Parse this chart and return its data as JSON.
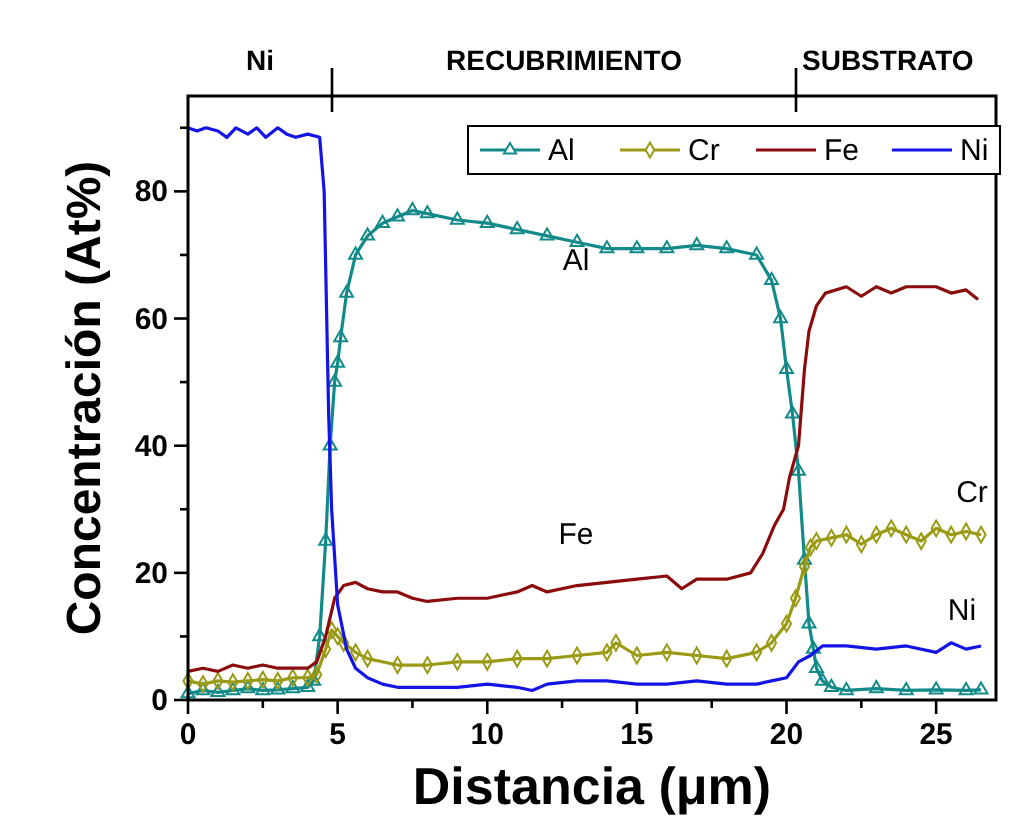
{
  "chart_data": {
    "type": "line",
    "xlabel": "Distancia (μm)",
    "ylabel": "Concentración (At%)",
    "xlim": [
      0,
      27
    ],
    "ylim": [
      0,
      95
    ],
    "xticks": [
      0,
      {
        "value": 2.5,
        "label": null
      },
      5,
      {
        "value": 7.5,
        "label": null
      },
      10,
      {
        "value": 12.5,
        "label": null
      },
      15,
      {
        "value": 17.5,
        "label": null
      },
      20,
      {
        "value": 22.5,
        "label": null
      },
      25
    ],
    "yticks": [
      0,
      {
        "value": 10,
        "label": null
      },
      20,
      {
        "value": 30,
        "label": null
      },
      40,
      {
        "value": 50,
        "label": null
      },
      60,
      {
        "value": 70,
        "label": null
      },
      80,
      {
        "value": 90,
        "label": null
      }
    ],
    "legend": "top right",
    "grid": false,
    "annotations": [
      "Ni",
      "RECUBRIMIENTO",
      "SUBSTRATO",
      "Al",
      "Fe",
      "Cr",
      "Ni"
    ],
    "series": [
      {
        "name": "Al",
        "color": "#138a8a",
        "marker": "triangle",
        "x": [
          0,
          0.5,
          1,
          1.5,
          2,
          2.5,
          3,
          3.5,
          4,
          4.2,
          4.4,
          4.6,
          4.75,
          4.9,
          5,
          5.1,
          5.3,
          5.6,
          6,
          6.5,
          7,
          7.5,
          8,
          9,
          10,
          11,
          12,
          13,
          14,
          15,
          16,
          17,
          18,
          19,
          19.5,
          19.8,
          20,
          20.2,
          20.4,
          20.6,
          20.75,
          20.9,
          21,
          21.2,
          21.5,
          22,
          23,
          24,
          25,
          26,
          26.5
        ],
        "values": [
          1,
          1.5,
          1.2,
          1.5,
          1.8,
          1.5,
          1.6,
          1.8,
          2,
          3,
          10,
          25,
          40,
          50,
          53,
          57,
          64,
          70,
          73,
          75,
          76,
          77,
          76.5,
          75.5,
          75,
          74,
          73,
          72,
          71,
          71,
          71,
          71.5,
          71,
          70,
          66,
          60,
          52,
          45,
          36,
          22,
          12,
          8,
          5,
          3,
          2,
          1.5,
          1.8,
          1.5,
          1.6,
          1.5,
          1.6
        ]
      },
      {
        "name": "Cr",
        "color": "#9a9a14",
        "marker": "diamond",
        "x": [
          0,
          0.5,
          1,
          1.5,
          2,
          2.5,
          3,
          3.5,
          4,
          4.3,
          4.6,
          4.8,
          5,
          5.2,
          5.6,
          6,
          7,
          8,
          9,
          10,
          11,
          12,
          13,
          14,
          14.3,
          15,
          16,
          17,
          18,
          19,
          19.5,
          20,
          20.3,
          20.6,
          20.8,
          21,
          21.5,
          22,
          22.5,
          23,
          23.5,
          24,
          24.5,
          25,
          25.5,
          26,
          26.5
        ],
        "values": [
          3,
          2.5,
          3,
          2.8,
          3,
          3.2,
          3,
          3.5,
          3.5,
          4,
          8,
          11,
          10,
          9,
          7.5,
          6.5,
          5.5,
          5.5,
          6,
          6,
          6.5,
          6.5,
          7,
          7.5,
          9,
          7,
          7.5,
          7,
          6.5,
          7.5,
          9,
          12,
          16,
          21,
          24,
          25,
          25.5,
          26,
          24.5,
          26,
          27,
          26,
          25,
          27,
          26,
          26.5,
          26
        ]
      },
      {
        "name": "Fe",
        "color": "#8b0c0c",
        "marker": "none",
        "x": [
          0,
          0.5,
          1,
          1.5,
          2,
          2.5,
          3,
          3.5,
          4,
          4.3,
          4.6,
          4.9,
          5.2,
          5.6,
          6,
          6.5,
          7,
          7.5,
          8,
          9,
          10,
          11,
          11.5,
          12,
          13,
          14,
          15,
          16,
          16.5,
          17,
          18,
          18.8,
          19.2,
          19.6,
          19.9,
          20.1,
          20.4,
          20.6,
          20.75,
          21,
          21.3,
          22,
          22.5,
          23,
          23.5,
          24,
          25,
          25.5,
          26,
          26.4
        ],
        "values": [
          4.5,
          5,
          4.5,
          5.5,
          5,
          5.5,
          5,
          5,
          5,
          6,
          10,
          16,
          18,
          18.5,
          17.5,
          17,
          17,
          16,
          15.5,
          16,
          16,
          17,
          18,
          17,
          18,
          18.5,
          19,
          19.5,
          17.5,
          19,
          19,
          20,
          23,
          27.5,
          30,
          35,
          40,
          52,
          58,
          62,
          64,
          65,
          63.5,
          65,
          64,
          65,
          65,
          64,
          64.5,
          63
        ]
      },
      {
        "name": "Ni",
        "color": "#1414e6",
        "marker": "none",
        "x": [
          0,
          0.3,
          0.6,
          1,
          1.3,
          1.6,
          2,
          2.3,
          2.6,
          3,
          3.3,
          3.6,
          4,
          4.4,
          4.55,
          4.7,
          4.8,
          5,
          5.3,
          5.6,
          6,
          6.5,
          7,
          8,
          9,
          10,
          11,
          11.5,
          12,
          13,
          14,
          15,
          16,
          17,
          18,
          19,
          19.5,
          20,
          20.4,
          20.8,
          21.2,
          22,
          23,
          24,
          25,
          25.5,
          26,
          26.5
        ],
        "values": [
          90,
          89.5,
          90,
          89.5,
          88.5,
          90,
          89,
          90,
          88.5,
          90,
          89,
          88.5,
          89,
          88.5,
          80,
          45,
          30,
          15,
          8,
          5,
          3.5,
          2.5,
          2,
          2,
          2,
          2.5,
          2,
          1.5,
          2.5,
          3,
          3,
          2.5,
          2.5,
          3,
          2.5,
          2.5,
          3,
          3.5,
          6,
          7,
          8.5,
          8.5,
          8,
          8.5,
          7.5,
          9,
          8,
          8.5
        ]
      }
    ]
  }
}
